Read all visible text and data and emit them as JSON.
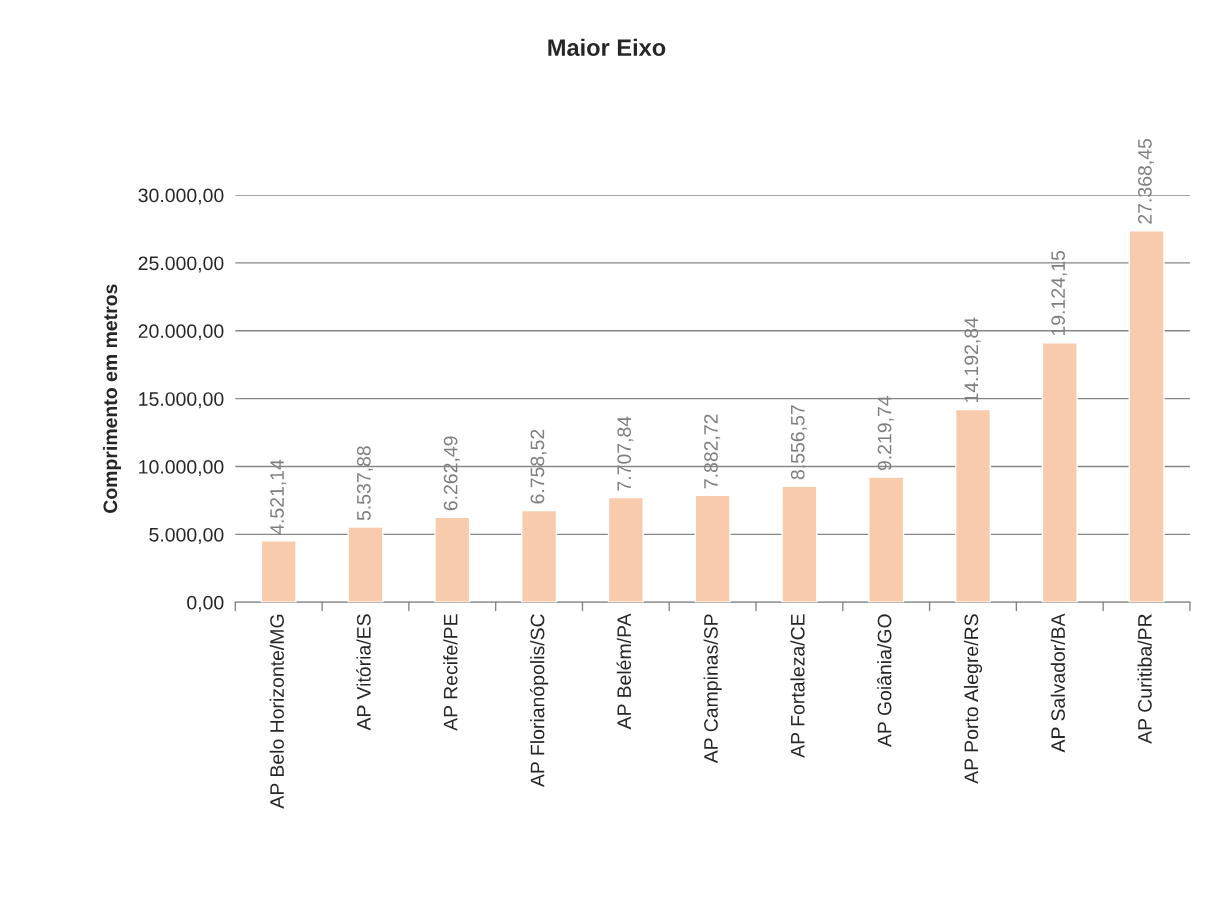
{
  "chart_data": {
    "type": "bar",
    "title": "Maior Eixo",
    "ylabel": "Comprimento em metros",
    "categories": [
      "AP Belo Horizonte/MG",
      "AP Vitória/ES",
      "AP Recife/PE",
      "AP Florianópolis/SC",
      "AP Belém/PA",
      "AP Campinas/SP",
      "AP Fortaleza/CE",
      "AP Goiânia/GO",
      "AP Porto Alegre/RS",
      "AP Salvador/BA",
      "AP Curitiba/PR"
    ],
    "values": [
      4521.14,
      5537.88,
      6262.49,
      6758.52,
      7707.84,
      7882.72,
      8556.57,
      9219.74,
      14192.84,
      19124.15,
      27368.45
    ],
    "value_labels": [
      "4.521,14",
      "5.537,88",
      "6.262,49",
      "6.758,52",
      "7.707,84",
      "7.882,72",
      "8.556,57",
      "9.219,74",
      "14.192,84",
      "19.124,15",
      "27.368,45"
    ],
    "color": "#f8cbad",
    "ylim": [
      0,
      30000
    ],
    "yticks": [
      {
        "value": 0,
        "label": "0,00"
      },
      {
        "value": 5000,
        "label": "5.000,00"
      },
      {
        "value": 10000,
        "label": "10.000,00"
      },
      {
        "value": 15000,
        "label": "15.000,00"
      },
      {
        "value": 20000,
        "label": "20.000,00"
      },
      {
        "value": 25000,
        "label": "25.000,00"
      },
      {
        "value": 30000,
        "label": "30.000,00"
      }
    ],
    "grid": "y",
    "legend": false
  }
}
